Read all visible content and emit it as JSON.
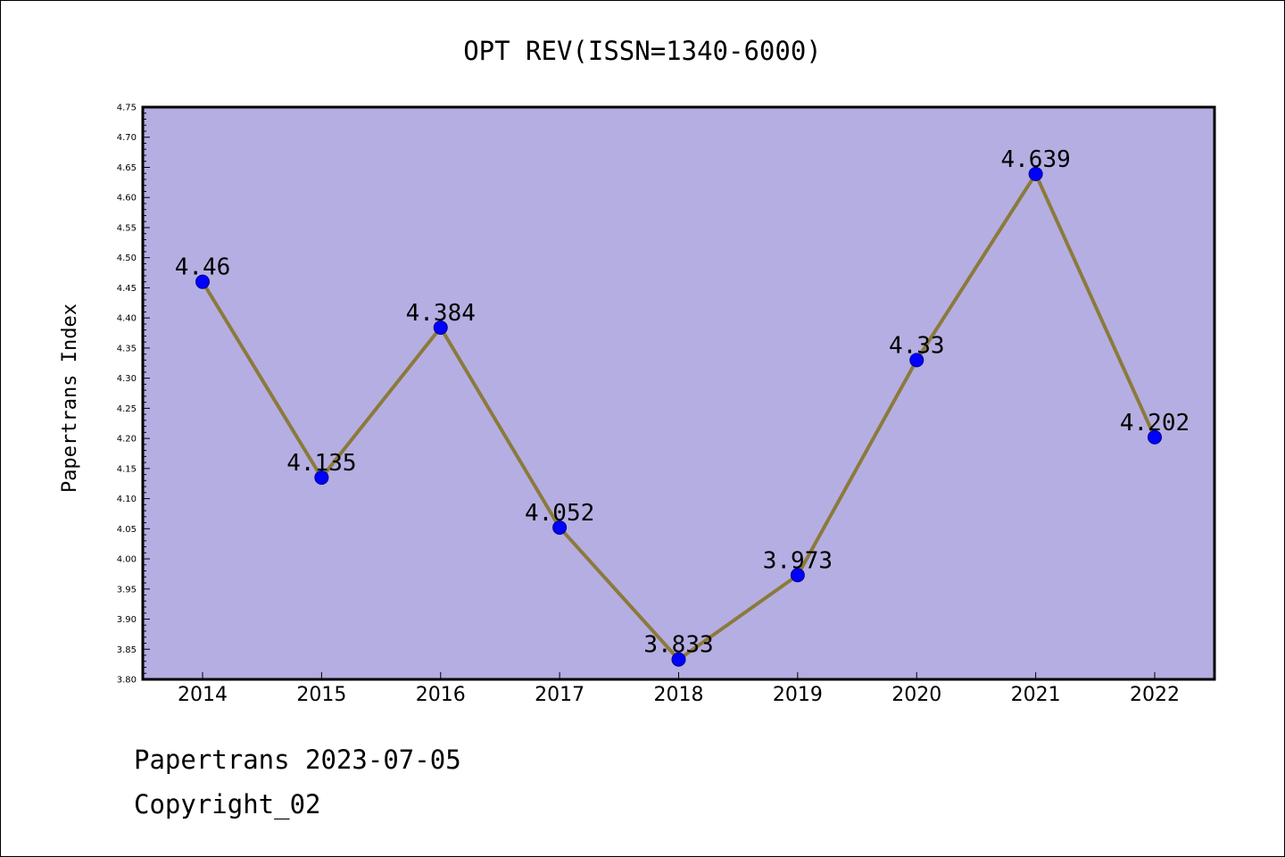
{
  "chart_data": {
    "type": "line",
    "title": "OPT REV(ISSN=1340-6000)",
    "xlabel": "",
    "ylabel": "Papertrans Index",
    "categories": [
      "2014",
      "2015",
      "2016",
      "2017",
      "2018",
      "2019",
      "2020",
      "2021",
      "2022"
    ],
    "series": [
      {
        "values": [
          4.46,
          4.135,
          4.384,
          4.052,
          3.833,
          3.973,
          4.33,
          4.639,
          4.202
        ],
        "labels": [
          "4.46",
          "4.135",
          "4.384",
          "4.052",
          "3.833",
          "3.973",
          "4.33",
          "4.639",
          "4.202"
        ]
      }
    ],
    "ylim": [
      3.8,
      4.75
    ],
    "yticks": [
      "3.80",
      "3.85",
      "3.90",
      "3.95",
      "4.00",
      "4.05",
      "4.10",
      "4.15",
      "4.20",
      "4.25",
      "4.30",
      "4.35",
      "4.40",
      "4.45",
      "4.50",
      "4.55",
      "4.60",
      "4.65",
      "4.70",
      "4.75"
    ],
    "grid": false,
    "legend": "none",
    "colors": {
      "plot_background": "#b5aee2",
      "line": "#8b7a3b",
      "marker": "#0000ff",
      "marker_edge": "#00008b"
    }
  },
  "footer": {
    "line1": "Papertrans 2023-07-05",
    "line2": "Copyright_02"
  }
}
